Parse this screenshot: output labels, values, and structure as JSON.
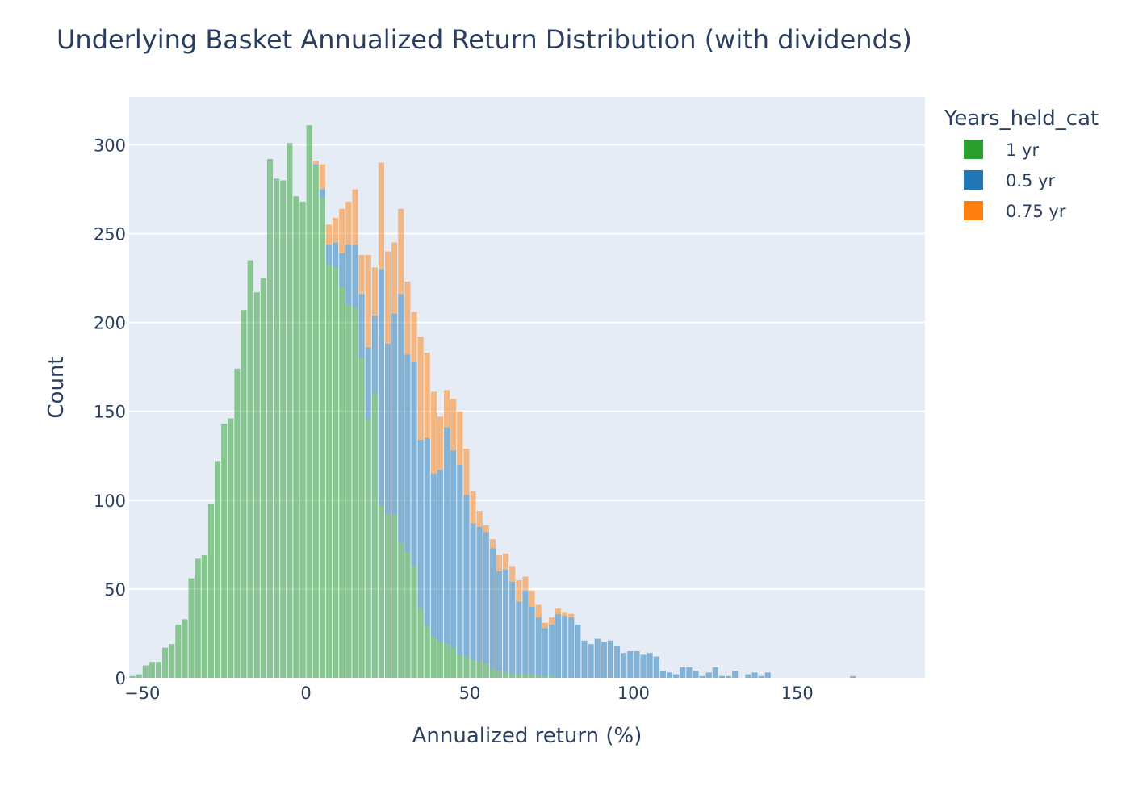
{
  "chart_data": {
    "type": "bar",
    "subtype": "stacked-histogram",
    "title": "Underlying Basket Annualized Return Distribution (with dividends)",
    "xlabel": "Annualized return (%)",
    "ylabel": "Count",
    "xlim": [
      -54,
      189
    ],
    "ylim": [
      0,
      327
    ],
    "x_ticks": [
      -50,
      0,
      50,
      100,
      150
    ],
    "x_tick_labels": [
      "−50",
      "0",
      "50",
      "100",
      "150"
    ],
    "y_ticks": [
      0,
      50,
      100,
      150,
      200,
      250,
      300
    ],
    "y_tick_labels": [
      "0",
      "50",
      "100",
      "150",
      "200",
      "250",
      "300"
    ],
    "grid": true,
    "legend_title": "Years_held_cat",
    "legend_position": "right",
    "bin_width": 2,
    "bin_starts": [
      -54,
      -52,
      -50,
      -48,
      -46,
      -44,
      -42,
      -40,
      -38,
      -36,
      -34,
      -32,
      -30,
      -28,
      -26,
      -24,
      -22,
      -20,
      -18,
      -16,
      -14,
      -12,
      -10,
      -8,
      -6,
      -4,
      -2,
      0,
      2,
      4,
      6,
      8,
      10,
      12,
      14,
      16,
      18,
      20,
      22,
      24,
      26,
      28,
      30,
      32,
      34,
      36,
      38,
      40,
      42,
      44,
      46,
      48,
      50,
      52,
      54,
      56,
      58,
      60,
      62,
      64,
      66,
      68,
      70,
      72,
      74,
      76,
      78,
      80,
      82,
      84,
      86,
      88,
      90,
      92,
      94,
      96,
      98,
      100,
      102,
      104,
      106,
      108,
      110,
      112,
      114,
      116,
      118,
      120,
      122,
      124,
      126,
      128,
      130,
      132,
      134,
      136,
      138,
      140,
      142,
      144,
      146,
      148,
      150,
      152,
      154,
      156,
      158,
      160,
      162,
      164,
      166,
      168,
      170,
      172,
      174,
      176,
      178,
      180,
      182,
      184,
      186
    ],
    "series": [
      {
        "name": "1 yr",
        "color": "#2ca02c",
        "values": [
          1,
          2,
          7,
          9,
          9,
          17,
          19,
          30,
          33,
          56,
          67,
          69,
          98,
          122,
          143,
          146,
          174,
          207,
          235,
          217,
          225,
          292,
          281,
          280,
          301,
          271,
          268,
          311,
          288,
          270,
          233,
          231,
          220,
          210,
          208,
          180,
          146,
          160,
          97,
          92,
          92,
          76,
          71,
          63,
          39,
          29,
          23,
          20,
          19,
          17,
          13,
          12,
          10,
          9,
          8,
          5,
          4,
          3,
          2,
          2,
          2,
          2,
          1,
          1,
          1,
          0,
          0,
          0,
          0,
          0,
          0,
          0,
          0,
          0,
          0,
          0,
          0,
          0,
          0,
          0,
          0,
          0,
          0,
          0,
          0,
          0,
          0,
          0,
          0,
          0,
          0,
          0,
          0,
          0,
          0,
          0,
          0,
          0,
          0,
          0,
          0,
          0,
          0,
          0,
          0,
          0,
          0,
          0,
          0,
          0,
          0,
          0,
          0,
          0,
          0,
          0,
          0,
          0,
          0,
          0,
          0,
          0
        ]
      },
      {
        "name": "0.5 yr",
        "color": "#1f77b4",
        "values": [
          0,
          0,
          0,
          0,
          0,
          0,
          0,
          0,
          0,
          0,
          0,
          0,
          0,
          0,
          0,
          0,
          0,
          0,
          0,
          0,
          0,
          0,
          0,
          0,
          0,
          0,
          0,
          0,
          1,
          5,
          11,
          14,
          19,
          34,
          36,
          36,
          40,
          44,
          133,
          96,
          113,
          140,
          111,
          115,
          95,
          106,
          92,
          97,
          122,
          111,
          107,
          91,
          77,
          76,
          74,
          68,
          56,
          58,
          52,
          41,
          47,
          38,
          33,
          27,
          29,
          36,
          35,
          34,
          30,
          21,
          19,
          22,
          20,
          21,
          18,
          14,
          15,
          15,
          13,
          14,
          12,
          4,
          3,
          2,
          6,
          6,
          4,
          1,
          3,
          6,
          1,
          1,
          4,
          0,
          2,
          3,
          1,
          3,
          0,
          0,
          0,
          0,
          0,
          0,
          0,
          0,
          0,
          0,
          0,
          0,
          1,
          0,
          0,
          0,
          0,
          0,
          0,
          0,
          0,
          0,
          0,
          2
        ]
      },
      {
        "name": "0.75 yr",
        "color": "#ff7f0e",
        "values": [
          0,
          0,
          0,
          0,
          0,
          0,
          0,
          0,
          0,
          0,
          0,
          0,
          0,
          0,
          0,
          0,
          0,
          0,
          0,
          0,
          0,
          0,
          0,
          0,
          0,
          0,
          0,
          0,
          2,
          14,
          11,
          14,
          25,
          24,
          31,
          22,
          52,
          27,
          60,
          52,
          40,
          48,
          41,
          28,
          58,
          48,
          46,
          30,
          21,
          29,
          30,
          26,
          18,
          9,
          4,
          5,
          9,
          9,
          9,
          12,
          8,
          9,
          7,
          3,
          4,
          3,
          2,
          2,
          0,
          0,
          0,
          0,
          0,
          0,
          0,
          0,
          0,
          0,
          0,
          0,
          0,
          0,
          0,
          0,
          0,
          0,
          0,
          0,
          0,
          0,
          0,
          0,
          0,
          0,
          0,
          0,
          0,
          0,
          0,
          0,
          0,
          0,
          0,
          0,
          0,
          0,
          0,
          0,
          0,
          0,
          0,
          0,
          0,
          0,
          0,
          0,
          0,
          0,
          0,
          0,
          0,
          0
        ]
      }
    ]
  }
}
